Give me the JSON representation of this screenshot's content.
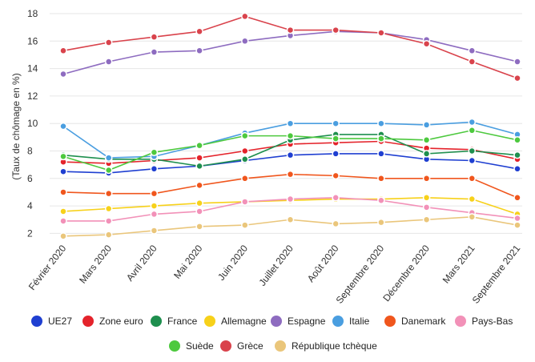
{
  "chart_data": {
    "type": "line",
    "ylabel": "(Taux de chômage en %)",
    "ylim": [
      1.5,
      18.5
    ],
    "yticks": [
      2,
      4,
      6,
      8,
      10,
      12,
      14,
      16,
      18
    ],
    "grid": true,
    "legend_position": "bottom",
    "categories": [
      "Février 2020",
      "Mars 2020",
      "Avril 2020",
      "Mai 2020",
      "Juin 2020",
      "Juillet 2020",
      "Août 2020",
      "Septembre 2020",
      "Décembre 2020",
      "Mars 2021",
      "Septembre 2021"
    ],
    "series": [
      {
        "name": "UE27",
        "color": "#1f3fd1",
        "values": [
          6.5,
          6.4,
          6.7,
          6.9,
          7.3,
          7.7,
          7.8,
          7.8,
          7.4,
          7.3,
          6.7
        ]
      },
      {
        "name": "Zone euro",
        "color": "#e4232b",
        "values": [
          7.2,
          7.1,
          7.3,
          7.5,
          8.0,
          8.5,
          8.6,
          8.7,
          8.2,
          8.1,
          7.4
        ]
      },
      {
        "name": "France",
        "color": "#1e8f4e",
        "values": [
          7.7,
          7.4,
          7.4,
          6.9,
          7.4,
          8.8,
          9.2,
          9.2,
          7.8,
          8.0,
          7.7
        ]
      },
      {
        "name": "Allemagne",
        "color": "#f7d11a",
        "values": [
          3.6,
          3.8,
          4.0,
          4.2,
          4.3,
          4.4,
          4.5,
          4.5,
          4.6,
          4.5,
          3.4
        ]
      },
      {
        "name": "Espagne",
        "color": "#8e6cc0",
        "values": [
          13.6,
          14.5,
          15.2,
          15.3,
          16.0,
          16.4,
          16.7,
          16.6,
          16.1,
          15.3,
          14.5
        ]
      },
      {
        "name": "Italie",
        "color": "#4a9ee0",
        "values": [
          9.8,
          7.5,
          7.6,
          8.4,
          9.3,
          10.0,
          10.0,
          10.0,
          9.9,
          10.1,
          9.2
        ]
      },
      {
        "name": "Danemark",
        "color": "#f0561d",
        "values": [
          5.0,
          4.9,
          4.9,
          5.5,
          6.0,
          6.3,
          6.2,
          6.0,
          6.0,
          6.0,
          4.6
        ]
      },
      {
        "name": "Pays-Bas",
        "color": "#f291b8",
        "values": [
          2.9,
          2.9,
          3.4,
          3.6,
          4.3,
          4.5,
          4.6,
          4.4,
          3.9,
          3.5,
          3.1
        ]
      },
      {
        "name": "Suède",
        "color": "#4dc93e",
        "values": [
          7.6,
          6.6,
          7.9,
          8.4,
          9.1,
          9.1,
          8.9,
          8.9,
          8.8,
          9.5,
          8.8
        ]
      },
      {
        "name": "Grèce",
        "color": "#d9434c",
        "values": [
          15.3,
          15.9,
          16.3,
          16.7,
          17.8,
          16.8,
          16.8,
          16.6,
          15.8,
          14.5,
          13.3
        ]
      },
      {
        "name": "République tchèque",
        "color": "#eac67b",
        "values": [
          1.8,
          1.9,
          2.2,
          2.5,
          2.6,
          3.0,
          2.7,
          2.8,
          3.0,
          3.2,
          2.6
        ]
      }
    ]
  }
}
